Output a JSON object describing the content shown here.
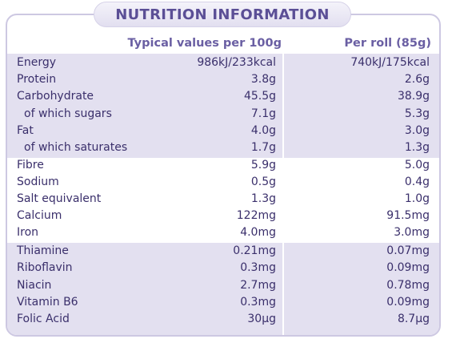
{
  "title": "NUTRITION INFORMATION",
  "headers": {
    "col1": "Typical values per 100g",
    "col2": "Per roll (85g)"
  },
  "rows": [
    {
      "name": "Energy",
      "v1": "986kJ/233kcal",
      "v2": "740kJ/175kcal"
    },
    {
      "name": "Protein",
      "v1": "3.8g",
      "v2": "2.6g"
    },
    {
      "name": "Carbohydrate",
      "v1": "45.5g",
      "v2": "38.9g"
    },
    {
      "name": "of which sugars",
      "v1": "7.1g",
      "v2": "5.3g"
    },
    {
      "name": "Fat",
      "v1": "4.0g",
      "v2": "3.0g"
    },
    {
      "name": "of which saturates",
      "v1": "1.7g",
      "v2": "1.3g"
    },
    {
      "name": "Fibre",
      "v1": "5.9g",
      "v2": "5.0g"
    },
    {
      "name": "Sodium",
      "v1": "0.5g",
      "v2": "0.4g"
    },
    {
      "name": "Salt equivalent",
      "v1": "1.3g",
      "v2": "1.0g"
    },
    {
      "name": "Calcium",
      "v1": "122mg",
      "v2": "91.5mg"
    },
    {
      "name": "Iron",
      "v1": "4.0mg",
      "v2": "3.0mg"
    },
    {
      "name": "Thiamine",
      "v1": "0.21mg",
      "v2": "0.07mg"
    },
    {
      "name": "Riboflavin",
      "v1": "0.3mg",
      "v2": "0.09mg"
    },
    {
      "name": "Niacin",
      "v1": "2.7mg",
      "v2": "0.78mg"
    },
    {
      "name": "Vitamin B6",
      "v1": "0.3mg",
      "v2": "0.09mg"
    },
    {
      "name": "Folic Acid",
      "v1": "30µg",
      "v2": "8.7µg"
    }
  ],
  "colors": {
    "band": "#e3e0f0",
    "border": "#cdc8e2",
    "title": "#5b4f96",
    "text": "#3a2f6b"
  }
}
